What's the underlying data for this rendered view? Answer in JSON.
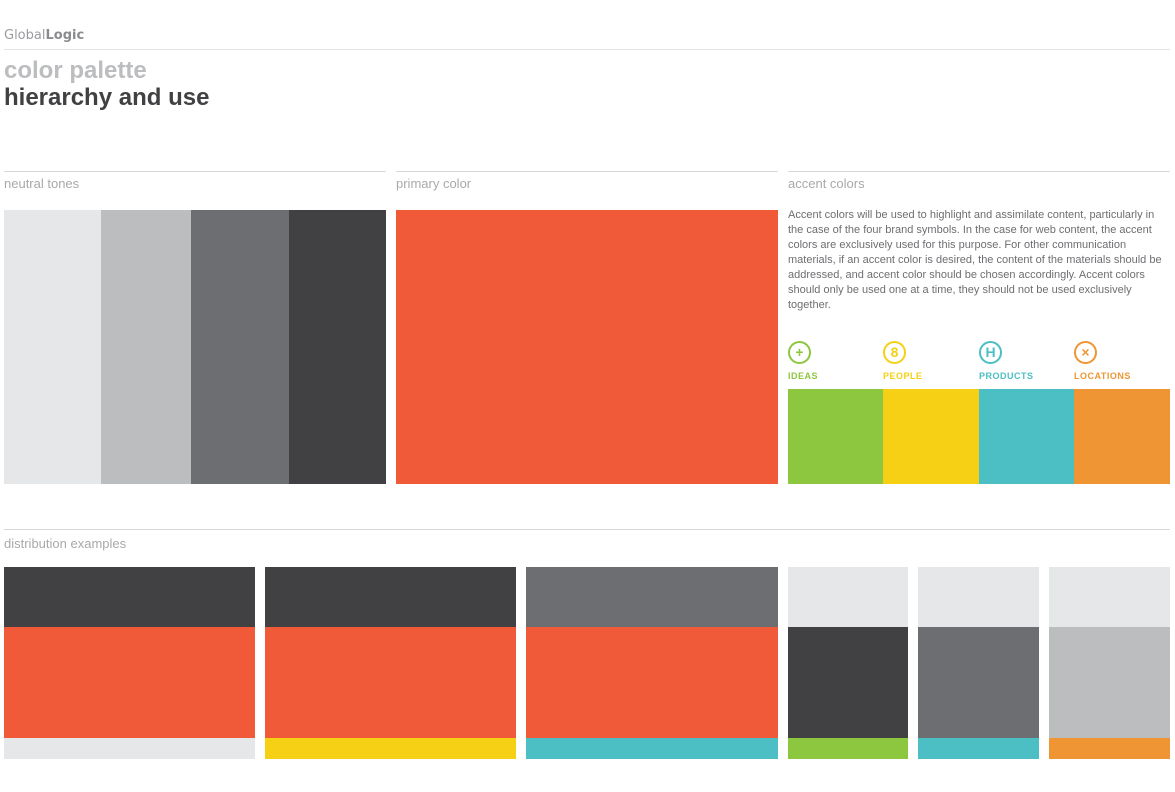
{
  "header": {
    "logo_light": "Global",
    "logo_bold": "Logic",
    "title_line1": "color palette",
    "title_line2": "hierarchy and use"
  },
  "sections": {
    "neutral": "neutral tones",
    "primary": "primary color",
    "accent": "accent colors",
    "distribution": "distribution examples"
  },
  "colors": {
    "neutral": [
      "#e6e7e8",
      "#bcbdbf",
      "#6d6e71",
      "#414042"
    ],
    "primary": "#f15a38",
    "accent": {
      "ideas": "#8dc63f",
      "people": "#f5d014",
      "products": "#4bbfc3",
      "locations": "#ef9533"
    }
  },
  "accent_text": "Accent colors will be used to highlight and assimilate content, particularly in the case of the four brand symbols. In the case for web content, the accent colors are exclusively used for this purpose. For other communication materials, if an accent color is desired, the content of the materials should be addressed, and accent color should be chosen accordingly. Accent colors should only be used one at a time, they should not be used exclusively together.",
  "accents": [
    {
      "label": "IDEAS",
      "icon": "plus-circle-icon",
      "glyph": "+",
      "color": "#8dc63f"
    },
    {
      "label": "PEOPLE",
      "icon": "person-circle-icon",
      "glyph": "8",
      "color": "#f5d014"
    },
    {
      "label": "PRODUCTS",
      "icon": "product-circle-icon",
      "glyph": "H",
      "color": "#4bbfc3"
    },
    {
      "label": "LOCATIONS",
      "icon": "x-circle-icon",
      "glyph": "×",
      "color": "#ef9533"
    }
  ],
  "distribution": [
    [
      "#414042",
      "#f15a38",
      "#e6e7e8"
    ],
    [
      "#414042",
      "#f15a38",
      "#f5d014"
    ],
    [
      "#6d6e71",
      "#f15a38",
      "#4bbfc3"
    ],
    [
      "#e6e7e8",
      "#414042",
      "#8dc63f"
    ],
    [
      "#e6e7e8",
      "#6d6e71",
      "#4bbfc3"
    ],
    [
      "#e6e7e8",
      "#bcbdbf",
      "#ef9533"
    ]
  ]
}
